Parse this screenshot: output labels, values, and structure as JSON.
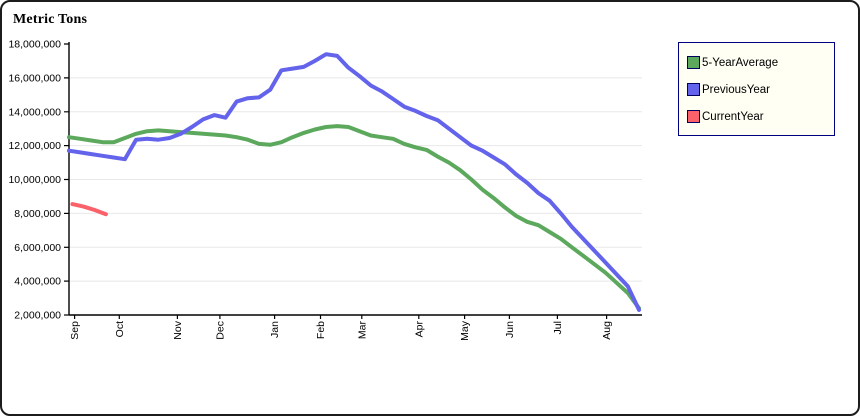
{
  "chart_data": {
    "type": "line",
    "title": "Metric Tons",
    "weeks": 52,
    "months": [
      "Sep",
      "Oct",
      "Nov",
      "Dec",
      "Jan",
      "Feb",
      "Mar",
      "Apr",
      "May",
      "Jun",
      "Jul",
      "Aug"
    ],
    "month_week_positions": [
      0.5,
      4.5,
      9.7,
      13.5,
      18.4,
      22.5,
      26.2,
      31.3,
      35.4,
      39.4,
      43.7,
      48.1
    ],
    "ylim": [
      2000000,
      18000000
    ],
    "y_tick_step": 2000000,
    "y_tick_labels": [
      "2,000,000",
      "4,000,000",
      "6,000,000",
      "8,000,000",
      "10,000,000",
      "12,000,000",
      "14,000,000",
      "16,000,000",
      "18,000,000"
    ],
    "grid": true,
    "grid_color": "#e8e8e8",
    "axis_color": "#000000",
    "legend_position": "top-right",
    "series": [
      {
        "name": "5-YearAverage",
        "color": "#5ca85c",
        "start_week": 0,
        "values": [
          12500000,
          12400000,
          12300000,
          12200000,
          12200000,
          12450000,
          12700000,
          12850000,
          12900000,
          12850000,
          12800000,
          12750000,
          12700000,
          12650000,
          12600000,
          12500000,
          12350000,
          12100000,
          12050000,
          12200000,
          12500000,
          12750000,
          12950000,
          13100000,
          13150000,
          13100000,
          12850000,
          12600000,
          12500000,
          12400000,
          12100000,
          11900000,
          11750000,
          11350000,
          11000000,
          10550000,
          10000000,
          9400000,
          8900000,
          8350000,
          7850000,
          7500000,
          7300000,
          6900000,
          6500000,
          6000000,
          5500000,
          5000000,
          4500000,
          3900000,
          3300000,
          2400000
        ]
      },
      {
        "name": "PreviousYear",
        "color": "#6363eb",
        "start_week": 0,
        "values": [
          11700000,
          11600000,
          11500000,
          11400000,
          11300000,
          11200000,
          12350000,
          12400000,
          12350000,
          12450000,
          12700000,
          13100000,
          13550000,
          13800000,
          13650000,
          14600000,
          14800000,
          14850000,
          15300000,
          16450000,
          16550000,
          16650000,
          17000000,
          17400000,
          17300000,
          16600000,
          16100000,
          15550000,
          15200000,
          14750000,
          14300000,
          14050000,
          13750000,
          13500000,
          13000000,
          12500000,
          12000000,
          11700000,
          11300000,
          10900000,
          10300000,
          9800000,
          9200000,
          8750000,
          8000000,
          7200000,
          6500000,
          5800000,
          5100000,
          4400000,
          3700000,
          2300000
        ]
      },
      {
        "name": "CurrentYear",
        "color": "#fa616a",
        "start_week": 0.3,
        "values": [
          8550000,
          8400000,
          8200000,
          7950000
        ]
      }
    ]
  },
  "legend": {
    "background": "#fffff4",
    "border_color": "#000080"
  }
}
